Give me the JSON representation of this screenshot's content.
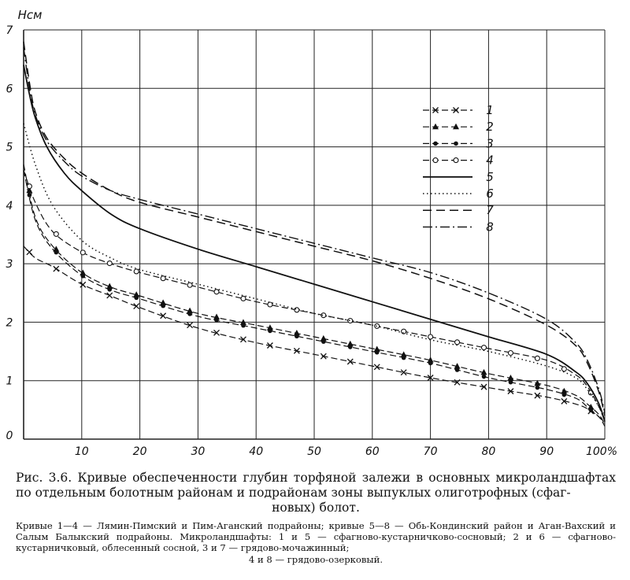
{
  "chart_data": {
    "type": "line",
    "ylabel": "Hсм",
    "xlabel": "%",
    "xlim": [
      0,
      100
    ],
    "ylim": [
      0,
      7
    ],
    "grid": true,
    "legend_position": "top-right",
    "x_ticks": [
      "10",
      "20",
      "30",
      "40",
      "50",
      "60",
      "70",
      "80",
      "90",
      "100%"
    ],
    "y_ticks": [
      "0",
      "1",
      "2",
      "3",
      "4",
      "5",
      "6",
      "7"
    ],
    "series": [
      {
        "name": "1",
        "style": "x-dash",
        "x": [
          0,
          2,
          5,
          10,
          15,
          20,
          30,
          40,
          50,
          60,
          70,
          80,
          90,
          95,
          97,
          99,
          100
        ],
        "y": [
          3.3,
          3.1,
          2.95,
          2.65,
          2.45,
          2.25,
          1.9,
          1.65,
          1.45,
          1.25,
          1.05,
          0.88,
          0.72,
          0.6,
          0.52,
          0.38,
          0.27
        ]
      },
      {
        "name": "2",
        "style": "triangle-dash",
        "x": [
          0,
          2,
          5,
          10,
          15,
          20,
          30,
          40,
          50,
          60,
          70,
          80,
          90,
          95,
          97,
          99,
          100
        ],
        "y": [
          4.7,
          3.8,
          3.3,
          2.85,
          2.6,
          2.45,
          2.15,
          1.95,
          1.75,
          1.55,
          1.35,
          1.12,
          0.92,
          0.75,
          0.6,
          0.42,
          0.25
        ]
      },
      {
        "name": "3",
        "style": "dot-dash",
        "x": [
          0,
          2,
          5,
          10,
          15,
          20,
          30,
          40,
          50,
          60,
          70,
          80,
          90,
          95,
          97,
          99,
          100
        ],
        "y": [
          4.6,
          3.75,
          3.25,
          2.8,
          2.55,
          2.4,
          2.1,
          1.9,
          1.7,
          1.5,
          1.3,
          1.05,
          0.85,
          0.7,
          0.55,
          0.38,
          0.22
        ]
      },
      {
        "name": "4",
        "style": "circle-dash",
        "x": [
          0,
          2,
          5,
          10,
          15,
          20,
          30,
          40,
          50,
          60,
          70,
          80,
          90,
          95,
          97,
          99,
          100
        ],
        "y": [
          4.6,
          4.05,
          3.55,
          3.2,
          3.0,
          2.85,
          2.6,
          2.35,
          2.15,
          1.95,
          1.75,
          1.55,
          1.35,
          1.1,
          0.9,
          0.55,
          0.3
        ]
      },
      {
        "name": "5",
        "style": "solid",
        "x": [
          0,
          1,
          2,
          4,
          7,
          10,
          15,
          20,
          30,
          40,
          50,
          60,
          70,
          80,
          90,
          95,
          97,
          99,
          100
        ],
        "y": [
          6.4,
          5.9,
          5.5,
          5.0,
          4.55,
          4.25,
          3.85,
          3.6,
          3.25,
          2.95,
          2.65,
          2.35,
          2.05,
          1.75,
          1.45,
          1.15,
          0.95,
          0.6,
          0.3
        ]
      },
      {
        "name": "6",
        "style": "dotted",
        "x": [
          0,
          2,
          5,
          10,
          15,
          20,
          30,
          40,
          50,
          60,
          70,
          80,
          90,
          95,
          97,
          99,
          100
        ],
        "y": [
          5.4,
          4.7,
          4.0,
          3.4,
          3.1,
          2.9,
          2.65,
          2.4,
          2.15,
          1.95,
          1.7,
          1.5,
          1.25,
          1.05,
          0.85,
          0.55,
          0.3
        ]
      },
      {
        "name": "7",
        "style": "dashed",
        "x": [
          0,
          1,
          2,
          4,
          7,
          10,
          15,
          20,
          30,
          40,
          50,
          60,
          70,
          80,
          90,
          95,
          97,
          99,
          100
        ],
        "y": [
          6.8,
          6.1,
          5.6,
          5.15,
          4.8,
          4.55,
          4.25,
          4.05,
          3.8,
          3.55,
          3.3,
          3.05,
          2.75,
          2.4,
          1.95,
          1.6,
          1.3,
          0.8,
          0.4
        ]
      },
      {
        "name": "8",
        "style": "dash-dot",
        "x": [
          0,
          1,
          2,
          4,
          7,
          10,
          15,
          20,
          30,
          40,
          50,
          60,
          70,
          80,
          90,
          95,
          97,
          99,
          100
        ],
        "y": [
          6.7,
          6.0,
          5.55,
          5.1,
          4.75,
          4.5,
          4.25,
          4.1,
          3.85,
          3.6,
          3.35,
          3.1,
          2.85,
          2.5,
          2.05,
          1.65,
          1.35,
          0.85,
          0.45
        ]
      }
    ],
    "legend_labels": [
      "1",
      "2",
      "3",
      "4",
      "5",
      "6",
      "7",
      "8"
    ]
  },
  "caption": {
    "title": "Рис. 3.6. Кривые обеспеченности глубин торфяной залежи в основных микроландшафтах по отдельным болотным районам и подрайонам зоны выпуклых олиготрофных (сфаг-",
    "title_end": "новых) болот.",
    "notes": "Кривые 1—4 — Лямин-Пимский и Пим-Аганский подрайоны; кривые 5—8 — Обь-Кондинский район и Аган-Вахский и Салым Балыкский подрайоны. Микроландшафты: 1 и 5 — сфагново-кустарничково-сосновый; 2 и 6 — сфагново-кустарничковый, облесенный сосной, 3 и 7 — грядово-мочажинный;",
    "notes_end": "4 и 8 — грядово-озерковый."
  }
}
